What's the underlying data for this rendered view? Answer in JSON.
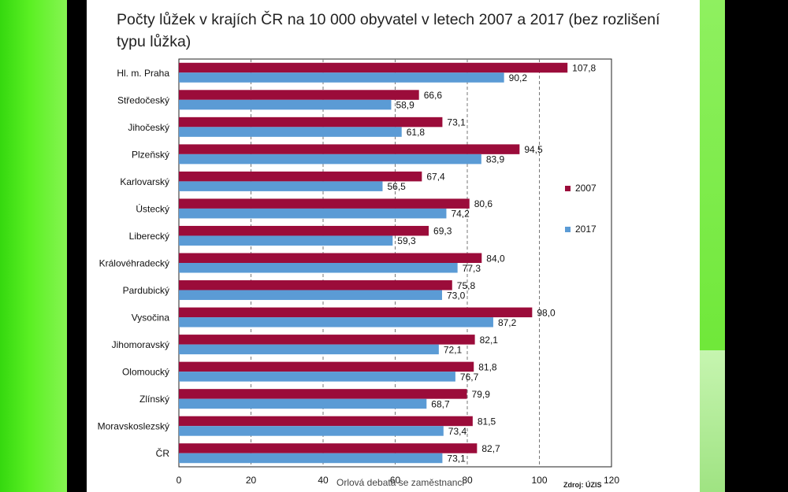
{
  "chart_data": {
    "type": "bar",
    "orientation": "horizontal",
    "title": "Počty lůžek v krajích ČR na 10 000 obyvatel v letech 2007 a 2017 (bez rozlišení typu lůžka)",
    "categories": [
      "Hl. m. Praha",
      "Středočeský",
      "Jihočeský",
      "Plzeňský",
      "Karlovarský",
      "Ústecký",
      "Liberecký",
      "Královéhradecký",
      "Pardubický",
      "Vysočina",
      "Jihomoravský",
      "Olomoucký",
      "Zlínský",
      "Moravskoslezský",
      "ČR"
    ],
    "series": [
      {
        "name": "2007",
        "color": "#9b0c3a",
        "values": [
          107.8,
          66.6,
          73.1,
          94.5,
          67.4,
          80.6,
          69.3,
          84.0,
          75.8,
          98.0,
          82.1,
          81.8,
          79.9,
          81.5,
          82.7
        ],
        "labels": [
          "107,8",
          "66,6",
          "73,1",
          "94,5",
          "67,4",
          "80,6",
          "69,3",
          "84,0",
          "75,8",
          "98,0",
          "82,1",
          "81,8",
          "79,9",
          "81,5",
          "82,7"
        ]
      },
      {
        "name": "2017",
        "color": "#5b9bd5",
        "values": [
          90.2,
          58.9,
          61.8,
          83.9,
          56.5,
          74.2,
          59.3,
          77.3,
          73.0,
          87.2,
          72.1,
          76.7,
          68.7,
          73.4,
          73.1
        ],
        "labels": [
          "90,2",
          "58,9",
          "61,8",
          "83,9",
          "56,5",
          "74,2",
          "59,3",
          "77,3",
          "73,0",
          "87,2",
          "72,1",
          "76,7",
          "68,7",
          "73,4",
          "73,1"
        ]
      }
    ],
    "xlim": [
      0,
      120
    ],
    "xticks": [
      0,
      20,
      40,
      60,
      80,
      100,
      120
    ],
    "xtick_labels": [
      "0",
      "20",
      "40",
      "60",
      "80",
      "100",
      "120"
    ],
    "grid": "vertical dashed",
    "legend_position": "right"
  },
  "footer": {
    "text": "Orlová debata se zaměstnanci",
    "source": "Zdroj: ÚZIS"
  }
}
